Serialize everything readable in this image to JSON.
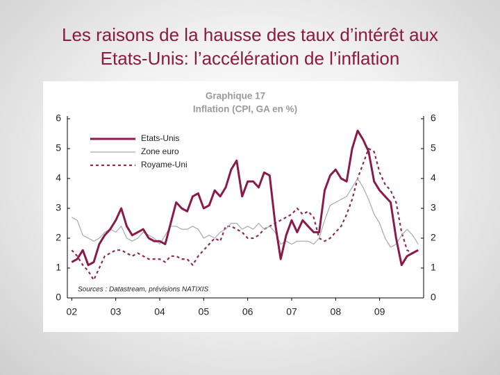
{
  "slide": {
    "title_lines": [
      "Les raisons de la hausse des taux d’intérêt aux",
      "Etats-Unis: l’accélération de l’inflation"
    ]
  },
  "chart_data": {
    "type": "line",
    "title": "Graphique 17",
    "subtitle": "Inflation (CPI, GA en %)",
    "source": "Sources : Datastream, prévisions NATIXIS",
    "x": [
      2002,
      2002.125,
      2002.25,
      2002.375,
      2002.5,
      2002.625,
      2002.75,
      2002.875,
      2003,
      2003.125,
      2003.25,
      2003.375,
      2003.5,
      2003.625,
      2003.75,
      2003.875,
      2004,
      2004.125,
      2004.25,
      2004.375,
      2004.5,
      2004.625,
      2004.75,
      2004.875,
      2005,
      2005.125,
      2005.25,
      2005.375,
      2005.5,
      2005.625,
      2005.75,
      2005.875,
      2006,
      2006.125,
      2006.25,
      2006.375,
      2006.5,
      2006.625,
      2006.75,
      2006.875,
      2007,
      2007.125,
      2007.25,
      2007.375,
      2007.5,
      2007.625,
      2007.75,
      2007.875,
      2008,
      2008.125,
      2008.25,
      2008.375,
      2008.5,
      2008.625,
      2008.75,
      2008.875,
      2009,
      2009.125,
      2009.25,
      2009.375,
      2009.5,
      2009.625,
      2009.75,
      2009.875
    ],
    "series": [
      {
        "name": "Etats-Unis",
        "color": "#8b1a4a",
        "width": 3,
        "style": "solid",
        "values": [
          1.2,
          1.3,
          1.6,
          1.1,
          1.2,
          1.8,
          2.1,
          2.3,
          2.6,
          3.0,
          2.4,
          2.1,
          2.2,
          2.3,
          2.0,
          1.9,
          1.9,
          1.8,
          2.5,
          3.2,
          3.0,
          2.9,
          3.4,
          3.5,
          3.0,
          3.1,
          3.6,
          3.4,
          3.7,
          4.3,
          4.6,
          3.4,
          3.9,
          3.9,
          3.7,
          4.2,
          4.1,
          2.5,
          1.3,
          2.1,
          2.6,
          2.2,
          2.6,
          2.4,
          2.2,
          2.2,
          3.6,
          4.1,
          4.3,
          4.0,
          3.9,
          5.0,
          5.6,
          5.3,
          4.9,
          3.9,
          3.6,
          3.4,
          3.2,
          2.0,
          1.1,
          1.4,
          1.5,
          1.6
        ]
      },
      {
        "name": "Zone euro",
        "color": "#a8a8a8",
        "width": 1.2,
        "style": "solid",
        "values": [
          2.7,
          2.6,
          2.1,
          2.0,
          1.9,
          2.0,
          2.2,
          2.3,
          2.2,
          2.4,
          2.0,
          1.9,
          2.0,
          2.2,
          2.1,
          2.0,
          1.8,
          2.1,
          2.4,
          2.4,
          2.3,
          2.3,
          2.4,
          2.3,
          2.0,
          2.1,
          2.0,
          2.2,
          2.3,
          2.5,
          2.5,
          2.3,
          2.4,
          2.3,
          2.5,
          2.3,
          2.4,
          2.2,
          1.8,
          1.9,
          1.8,
          1.9,
          1.9,
          1.9,
          1.8,
          2.0,
          2.6,
          3.1,
          3.2,
          3.3,
          3.4,
          3.7,
          4.0,
          3.7,
          3.3,
          2.8,
          2.5,
          2.0,
          1.7,
          1.8,
          2.1,
          2.3,
          2.1,
          1.8
        ]
      },
      {
        "name": "Royame-Uni",
        "color": "#8b2a5a",
        "width": 2.2,
        "style": "dotted",
        "values": [
          1.6,
          1.4,
          1.1,
          0.9,
          0.6,
          1.0,
          1.4,
          1.5,
          1.6,
          1.6,
          1.5,
          1.4,
          1.5,
          1.4,
          1.3,
          1.3,
          1.3,
          1.2,
          1.4,
          1.4,
          1.3,
          1.3,
          1.1,
          1.4,
          1.6,
          1.8,
          2.0,
          1.9,
          2.4,
          2.4,
          2.3,
          2.2,
          2.0,
          2.0,
          2.1,
          2.3,
          2.4,
          2.5,
          2.6,
          2.7,
          2.8,
          3.0,
          2.8,
          2.9,
          2.7,
          2.0,
          1.9,
          2.0,
          2.2,
          2.4,
          2.8,
          3.3,
          4.0,
          4.5,
          5.0,
          4.9,
          4.2,
          3.8,
          3.6,
          3.2,
          2.2,
          1.6,
          1.5,
          1.6
        ]
      }
    ],
    "xlim": [
      2001.9,
      2010.0
    ],
    "xticks": [
      {
        "value": 2002,
        "label": "02"
      },
      {
        "value": 2003,
        "label": "03"
      },
      {
        "value": 2004,
        "label": "04"
      },
      {
        "value": 2005,
        "label": "05"
      },
      {
        "value": 2006,
        "label": "06"
      },
      {
        "value": 2007,
        "label": "07"
      },
      {
        "value": 2008,
        "label": "08"
      },
      {
        "value": 2009,
        "label": "09"
      }
    ],
    "ylim": [
      0,
      6
    ],
    "yticks": [
      0,
      1,
      2,
      3,
      4,
      5,
      6
    ],
    "y2lim": [
      0,
      6
    ],
    "y2ticks": [
      0,
      1,
      2,
      3,
      4,
      5,
      6
    ],
    "grid": false,
    "legend": "upper left"
  }
}
